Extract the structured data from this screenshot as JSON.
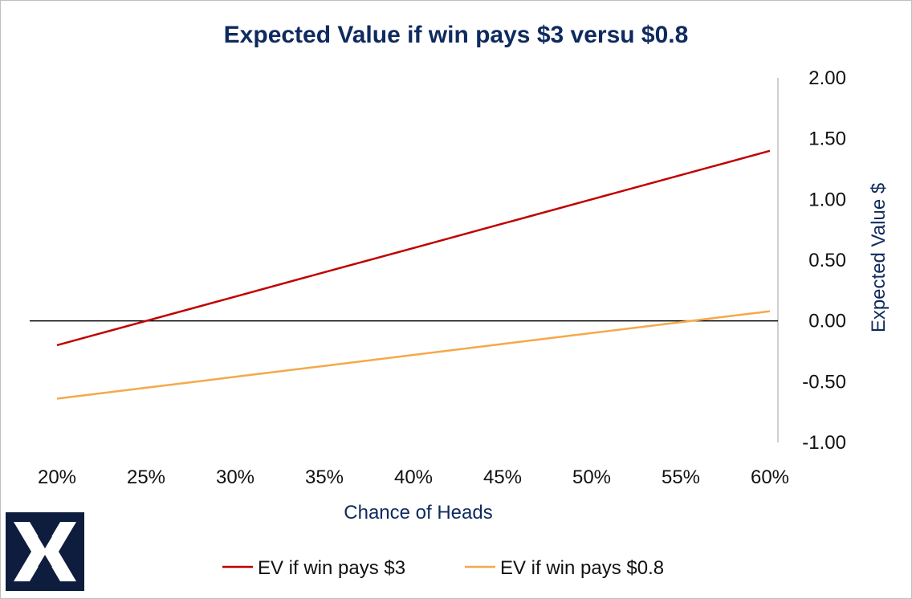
{
  "chart_data": {
    "type": "line",
    "title": "Expected Value if win pays $3 versu $0.8",
    "xlabel": "Chance of Heads",
    "ylabel": "Expected Value $",
    "x_ticks": [
      "20%",
      "25%",
      "30%",
      "35%",
      "40%",
      "45%",
      "50%",
      "55%",
      "60%"
    ],
    "y_ticks": [
      "2.00",
      "1.50",
      "1.00",
      "0.50",
      "0.00",
      "-0.50",
      "-1.00"
    ],
    "xlim": [
      0.2,
      0.6
    ],
    "ylim": [
      -1.0,
      2.0
    ],
    "y_axis_position": "right",
    "legend_position": "bottom",
    "grid": false,
    "x": [
      0.2,
      0.25,
      0.3,
      0.35,
      0.4,
      0.45,
      0.5,
      0.55,
      0.6
    ],
    "series": [
      {
        "name": "EV if win pays $3",
        "color": "#c00000",
        "values": [
          -0.2,
          0.0,
          0.2,
          0.4,
          0.6,
          0.8,
          1.0,
          1.2,
          1.4
        ]
      },
      {
        "name": "EV if win pays $0.8",
        "color": "#f4a94a",
        "values": [
          -0.64,
          -0.55,
          -0.46,
          -0.37,
          -0.28,
          -0.19,
          -0.1,
          -0.01,
          0.08
        ]
      }
    ]
  },
  "logo": {
    "name": "X logo",
    "background": "#0e1d3d"
  }
}
